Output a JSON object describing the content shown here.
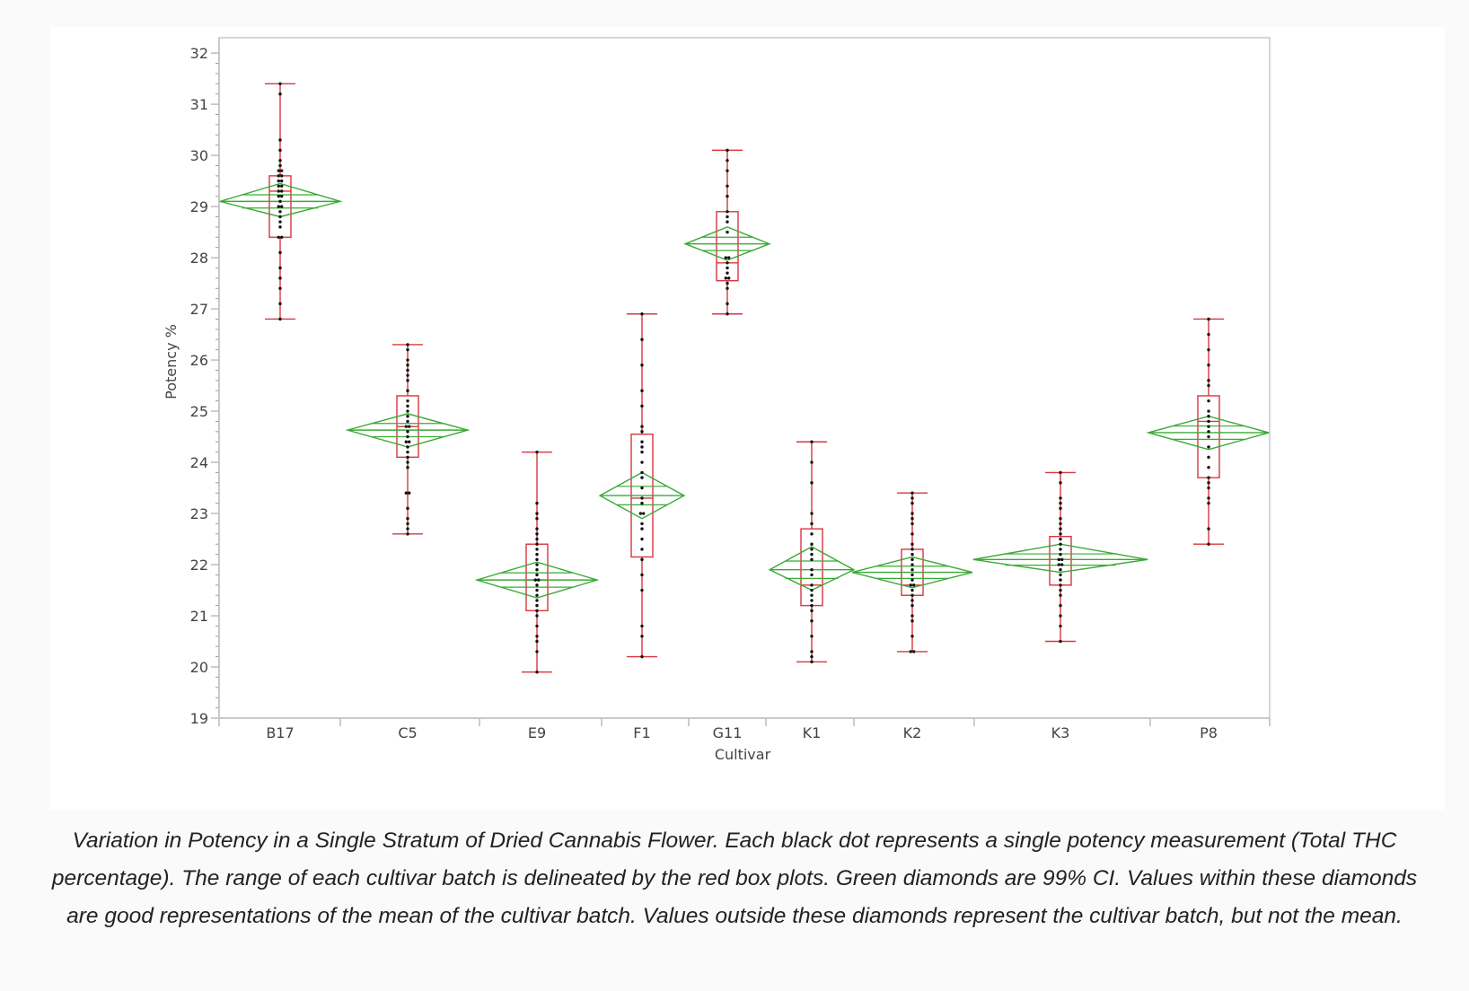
{
  "chart_data": {
    "type": "box",
    "xlabel": "Cultivar",
    "ylabel": "Potency %",
    "ylim": [
      19,
      32.3
    ],
    "yticks": [
      19,
      20,
      21,
      22,
      23,
      24,
      25,
      26,
      27,
      28,
      29,
      30,
      31,
      32
    ],
    "grid": false,
    "colors": {
      "box": "#d9363e",
      "diamond": "#3aaa35",
      "point": "#111111",
      "axis": "#9a9a9a",
      "frame": "#c8c8c8"
    },
    "categories": [
      {
        "name": "B17",
        "min": 26.8,
        "q1": 28.4,
        "median": 29.3,
        "q3": 29.6,
        "max": 31.4,
        "mean": 29.1,
        "ci": [
          28.8,
          29.45
        ],
        "diamond_half_width": 1.0,
        "points": [
          31.4,
          31.2,
          30.3,
          30.1,
          29.9,
          29.8,
          29.7,
          29.7,
          29.6,
          29.6,
          29.5,
          29.5,
          29.4,
          29.4,
          29.3,
          29.3,
          29.2,
          29.2,
          29.1,
          29.0,
          29.0,
          28.9,
          28.8,
          28.7,
          28.6,
          28.4,
          28.4,
          28.1,
          27.8,
          27.6,
          27.4,
          27.1,
          26.8
        ]
      },
      {
        "name": "C5",
        "min": 22.6,
        "q1": 24.1,
        "median": 24.7,
        "q3": 25.3,
        "max": 26.3,
        "mean": 24.63,
        "ci": [
          24.3,
          24.95
        ],
        "diamond_half_width": 1.0,
        "points": [
          26.3,
          26.2,
          26.0,
          25.9,
          25.8,
          25.7,
          25.6,
          25.4,
          25.2,
          25.1,
          25.0,
          24.9,
          24.8,
          24.7,
          24.7,
          24.6,
          24.5,
          24.4,
          24.4,
          24.3,
          24.2,
          24.1,
          24.0,
          23.9,
          23.4,
          23.4,
          23.1,
          22.9,
          22.8,
          22.7,
          22.6
        ]
      },
      {
        "name": "E9",
        "min": 19.9,
        "q1": 21.1,
        "median": 21.7,
        "q3": 22.4,
        "max": 24.2,
        "mean": 21.7,
        "ci": [
          21.35,
          22.05
        ],
        "diamond_half_width": 1.0,
        "points": [
          24.2,
          23.2,
          23.0,
          22.9,
          22.7,
          22.6,
          22.5,
          22.4,
          22.3,
          22.2,
          22.1,
          22.0,
          21.9,
          21.8,
          21.7,
          21.7,
          21.6,
          21.5,
          21.4,
          21.3,
          21.2,
          21.1,
          21.0,
          20.8,
          20.6,
          20.5,
          20.3,
          19.9
        ]
      },
      {
        "name": "F1",
        "min": 20.2,
        "q1": 22.15,
        "median": 23.3,
        "q3": 24.55,
        "max": 26.9,
        "mean": 23.35,
        "ci": [
          22.9,
          23.8
        ],
        "diamond_half_width": 0.7,
        "points": [
          26.9,
          26.4,
          25.9,
          25.4,
          25.1,
          24.7,
          24.6,
          24.4,
          24.3,
          24.2,
          24.0,
          23.8,
          23.7,
          23.5,
          23.3,
          23.2,
          23.0,
          23.0,
          22.8,
          22.7,
          22.5,
          22.3,
          22.1,
          21.8,
          21.5,
          20.8,
          20.6,
          20.2
        ]
      },
      {
        "name": "G11",
        "min": 26.9,
        "q1": 27.55,
        "median": 27.9,
        "q3": 28.9,
        "max": 30.1,
        "mean": 28.27,
        "ci": [
          27.95,
          28.6
        ],
        "diamond_half_width": 0.7,
        "points": [
          30.1,
          29.9,
          29.7,
          29.4,
          29.2,
          28.9,
          28.8,
          28.7,
          28.5,
          28.0,
          28.0,
          27.9,
          27.8,
          27.7,
          27.6,
          27.6,
          27.5,
          27.4,
          27.1,
          26.9
        ]
      },
      {
        "name": "K1",
        "min": 20.1,
        "q1": 21.2,
        "median": 21.6,
        "q3": 22.7,
        "max": 24.4,
        "mean": 21.9,
        "ci": [
          21.5,
          22.35
        ],
        "diamond_half_width": 0.7,
        "points": [
          24.4,
          24.0,
          23.6,
          23.0,
          22.8,
          22.6,
          22.4,
          22.3,
          22.2,
          22.1,
          21.9,
          21.8,
          21.6,
          21.5,
          21.4,
          21.3,
          21.2,
          21.1,
          20.9,
          20.6,
          20.3,
          20.2,
          20.1
        ]
      },
      {
        "name": "K2",
        "min": 20.3,
        "q1": 21.4,
        "median": 21.6,
        "q3": 22.3,
        "max": 23.4,
        "mean": 21.85,
        "ci": [
          21.55,
          22.15
        ],
        "diamond_half_width": 1.0,
        "points": [
          23.4,
          23.3,
          23.2,
          23.0,
          22.9,
          22.8,
          22.6,
          22.4,
          22.3,
          22.2,
          22.1,
          22.0,
          21.9,
          21.8,
          21.7,
          21.6,
          21.6,
          21.5,
          21.4,
          21.3,
          21.2,
          21.0,
          20.9,
          20.6,
          20.3,
          20.3
        ]
      },
      {
        "name": "K3",
        "min": 20.5,
        "q1": 21.6,
        "median": 22.1,
        "q3": 22.55,
        "max": 23.8,
        "mean": 22.1,
        "ci": [
          21.85,
          22.4
        ],
        "diamond_half_width": 1.45,
        "points": [
          23.8,
          23.6,
          23.3,
          23.2,
          23.1,
          22.9,
          22.8,
          22.7,
          22.6,
          22.5,
          22.4,
          22.3,
          22.2,
          22.1,
          22.1,
          22.0,
          22.0,
          21.9,
          21.8,
          21.7,
          21.6,
          21.5,
          21.4,
          21.2,
          21.0,
          20.8,
          20.5
        ]
      },
      {
        "name": "P8",
        "min": 22.4,
        "q1": 23.7,
        "median": 24.8,
        "q3": 25.3,
        "max": 26.8,
        "mean": 24.58,
        "ci": [
          24.25,
          24.9
        ],
        "diamond_half_width": 1.0,
        "points": [
          26.8,
          26.5,
          26.2,
          25.9,
          25.6,
          25.5,
          25.2,
          25.0,
          24.9,
          24.8,
          24.7,
          24.6,
          24.5,
          24.3,
          24.1,
          23.9,
          23.7,
          23.6,
          23.5,
          23.3,
          23.2,
          22.7,
          22.4
        ]
      }
    ]
  },
  "caption": "Variation in Potency in a Single Stratum of Dried Cannabis Flower. Each black dot represents a single potency measurement (Total THC percentage). The range of each cultivar batch is delineated by the red box plots. Green diamonds are 99% CI. Values within these diamonds are good representations of the mean of the cultivar batch. Values outside these diamonds represent the cultivar batch, but not the mean."
}
